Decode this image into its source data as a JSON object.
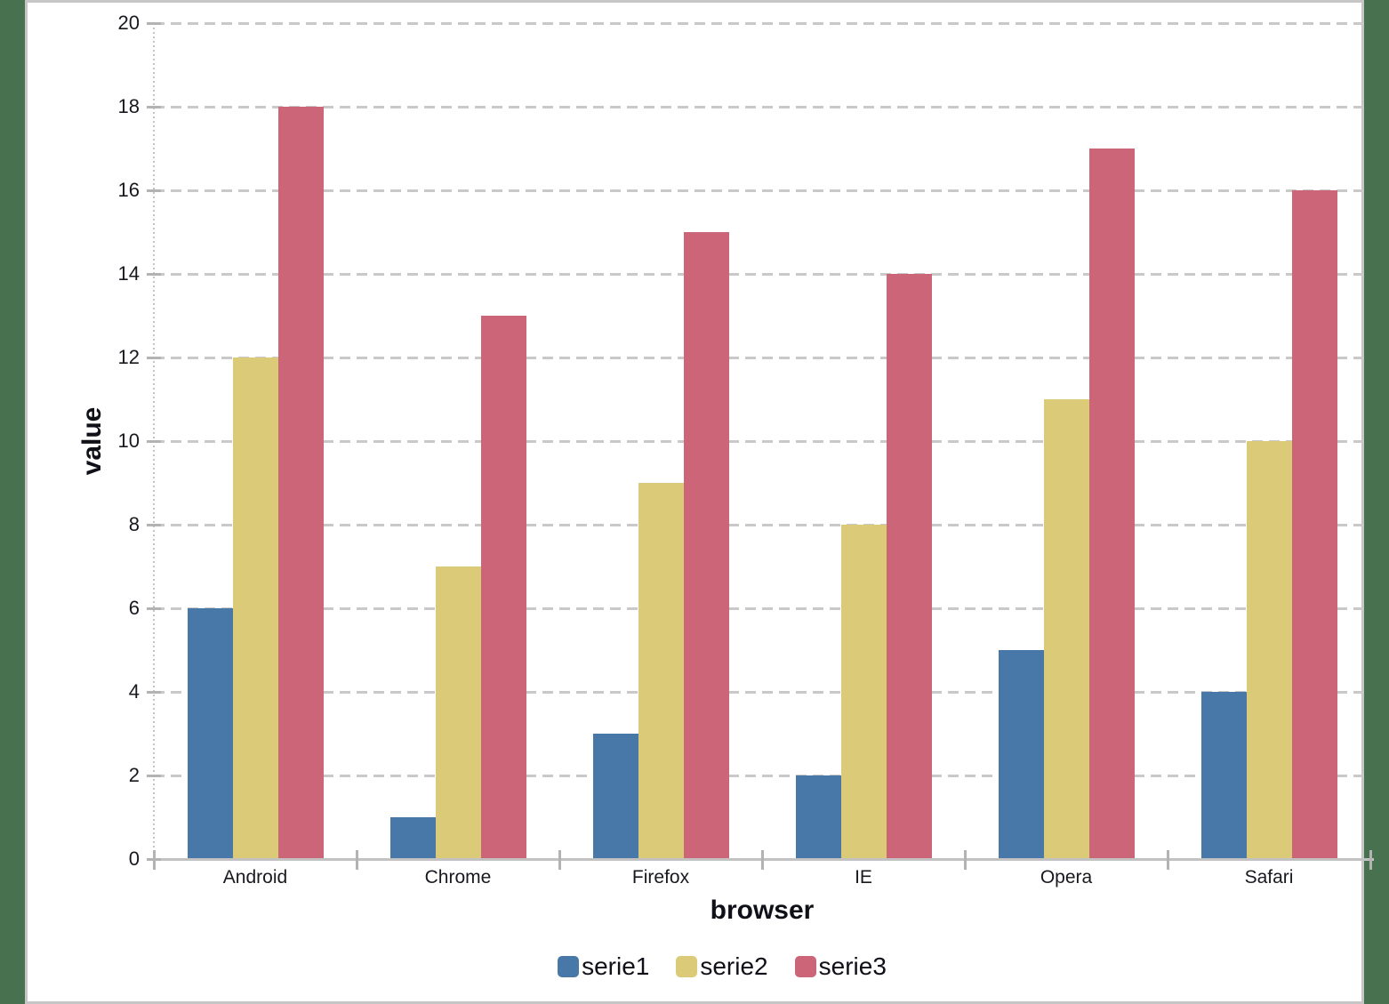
{
  "page": {
    "background_color": "#487150",
    "panel_background": "#ffffff",
    "panel_border_color": "#c6c6c6"
  },
  "chart_data": {
    "type": "bar",
    "title": "",
    "xlabel": "browser",
    "ylabel": "value",
    "categories": [
      "Android",
      "Chrome",
      "Firefox",
      "IE",
      "Opera",
      "Safari"
    ],
    "series": [
      {
        "name": "serie1",
        "color": "#4778A8",
        "values": [
          6,
          1,
          3,
          2,
          5,
          4
        ]
      },
      {
        "name": "serie2",
        "color": "#DBCB78",
        "values": [
          12,
          7,
          9,
          8,
          11,
          10
        ]
      },
      {
        "name": "serie3",
        "color": "#CB6577",
        "values": [
          18,
          13,
          15,
          14,
          17,
          16
        ]
      }
    ],
    "ylim": [
      0,
      20
    ],
    "ytick_step": 2,
    "yticks": [
      0,
      2,
      4,
      6,
      8,
      10,
      12,
      14,
      16,
      18,
      20
    ],
    "grid": true,
    "gridline_color": "#c9c9c9",
    "axis_color": "#b3b3b3",
    "text_color": "#18181f",
    "legend_position": "bottom"
  }
}
